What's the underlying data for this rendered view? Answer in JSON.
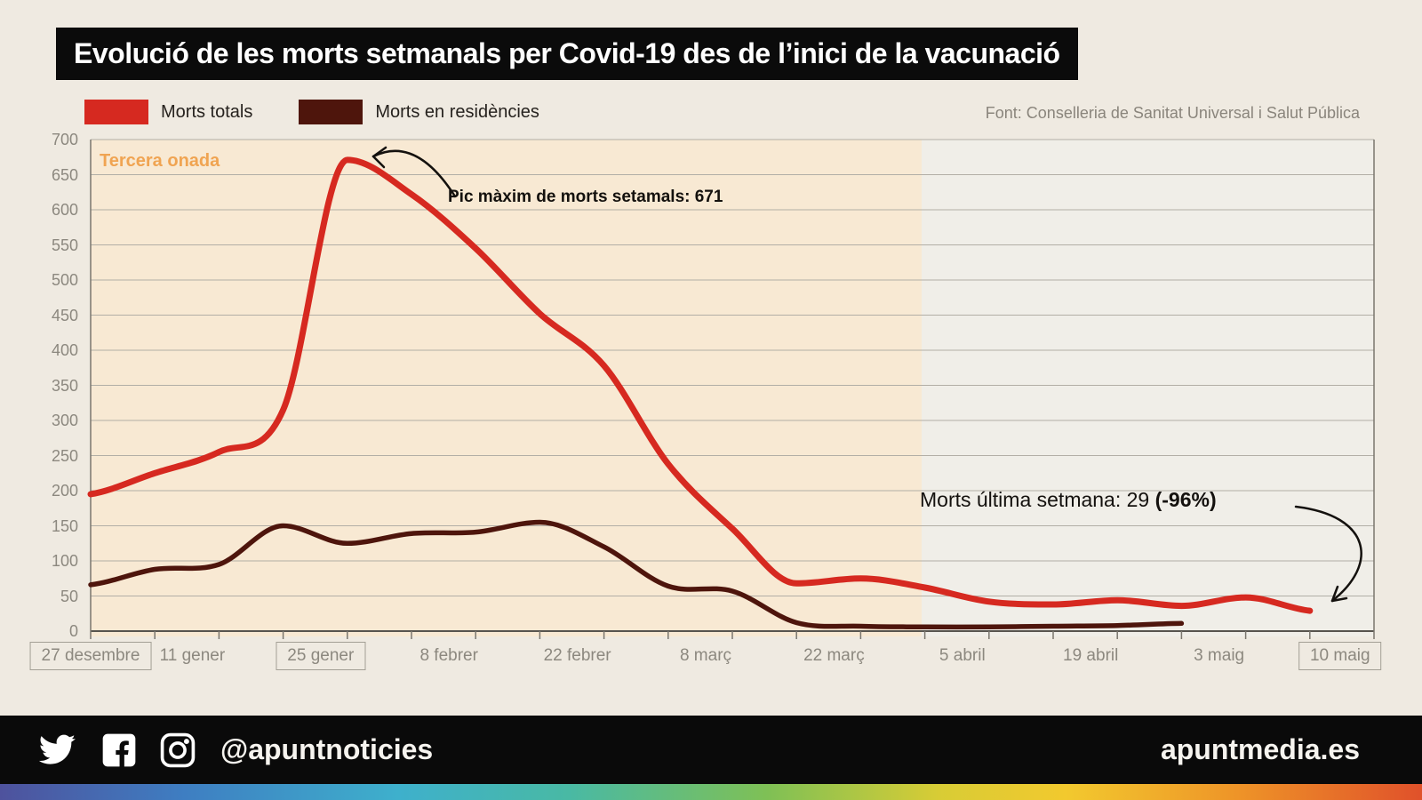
{
  "title": "Evolució de les morts setmanals per Covid-19 des de l’inici de la vacunació",
  "legend": [
    {
      "label": "Morts totals",
      "color": "#d62920"
    },
    {
      "label": "Morts en residències",
      "color": "#4e150c"
    }
  ],
  "source": "Font: Conselleria de Sanitat Universal i Salut Pública",
  "annotations": {
    "third_wave": "Tercera onada",
    "peak": "Pic màxim de morts setamals: 671",
    "last_week_prefix": "Morts última setmana: 29 ",
    "last_week_bold": "(-96%)"
  },
  "footer": {
    "icons": [
      "twitter-icon",
      "facebook-icon",
      "instagram-icon"
    ],
    "handle": "@apuntnoticies",
    "site": "apuntmedia.es"
  },
  "colors": {
    "background": "#efeae1",
    "title_bar": "#0b0b0b",
    "total_line": "#d62920",
    "residence_line": "#4e150c",
    "third_wave_shade": "#f8e9d3",
    "third_wave_text": "#f0a452",
    "grid": "#b2aea6",
    "axis_text": "#8c887f"
  },
  "chart_data": {
    "type": "line",
    "x_unit": "setmana",
    "grid": true,
    "legend_position": "top-left",
    "ylim": [
      0,
      700
    ],
    "y_step": 50,
    "x_tick_labels": [
      {
        "label": "27 desembre",
        "week": 0,
        "boxed": true,
        "align": "on"
      },
      {
        "label": "11 gener",
        "week": 2,
        "boxed": false,
        "align": "before"
      },
      {
        "label": "25 gener",
        "week": 4,
        "boxed": true,
        "align": "before"
      },
      {
        "label": "8 febrer",
        "week": 6,
        "boxed": false,
        "align": "before"
      },
      {
        "label": "22 febrer",
        "week": 8,
        "boxed": false,
        "align": "before"
      },
      {
        "label": "8 març",
        "week": 10,
        "boxed": false,
        "align": "before"
      },
      {
        "label": "22 març",
        "week": 12,
        "boxed": false,
        "align": "before"
      },
      {
        "label": "5 abril",
        "week": 14,
        "boxed": false,
        "align": "before"
      },
      {
        "label": "19 abril",
        "week": 16,
        "boxed": false,
        "align": "before"
      },
      {
        "label": "3 maig",
        "week": 18,
        "boxed": false,
        "align": "before"
      },
      {
        "label": "10 maig",
        "week": 19,
        "boxed": true,
        "align": "after"
      }
    ],
    "shaded_region": {
      "label": "Tercera onada",
      "start_week": 0,
      "end_week": 12.95,
      "color": "#f8e9d3"
    },
    "series": [
      {
        "name": "Morts totals",
        "color": "#d62920",
        "stroke_width": 7,
        "start_week": 0,
        "values": [
          195,
          225,
          255,
          315,
          671,
          622,
          545,
          452,
          378,
          238,
          146,
          68,
          75,
          62,
          42,
          38,
          44,
          36,
          48,
          29
        ]
      },
      {
        "name": "Morts en residències",
        "color": "#4e150c",
        "stroke_width": 5.5,
        "start_week": 0,
        "values": [
          66,
          88,
          95,
          150,
          125,
          139,
          141,
          155,
          120,
          64,
          57,
          12,
          7,
          6,
          6,
          7,
          8,
          11
        ]
      }
    ],
    "point_annotations": [
      {
        "text": "Pic màxim de morts setamals: 671",
        "week": 4,
        "value": 671
      },
      {
        "text": "Morts última setmana: 29 (-96%)",
        "week": 19,
        "value": 29
      }
    ]
  }
}
